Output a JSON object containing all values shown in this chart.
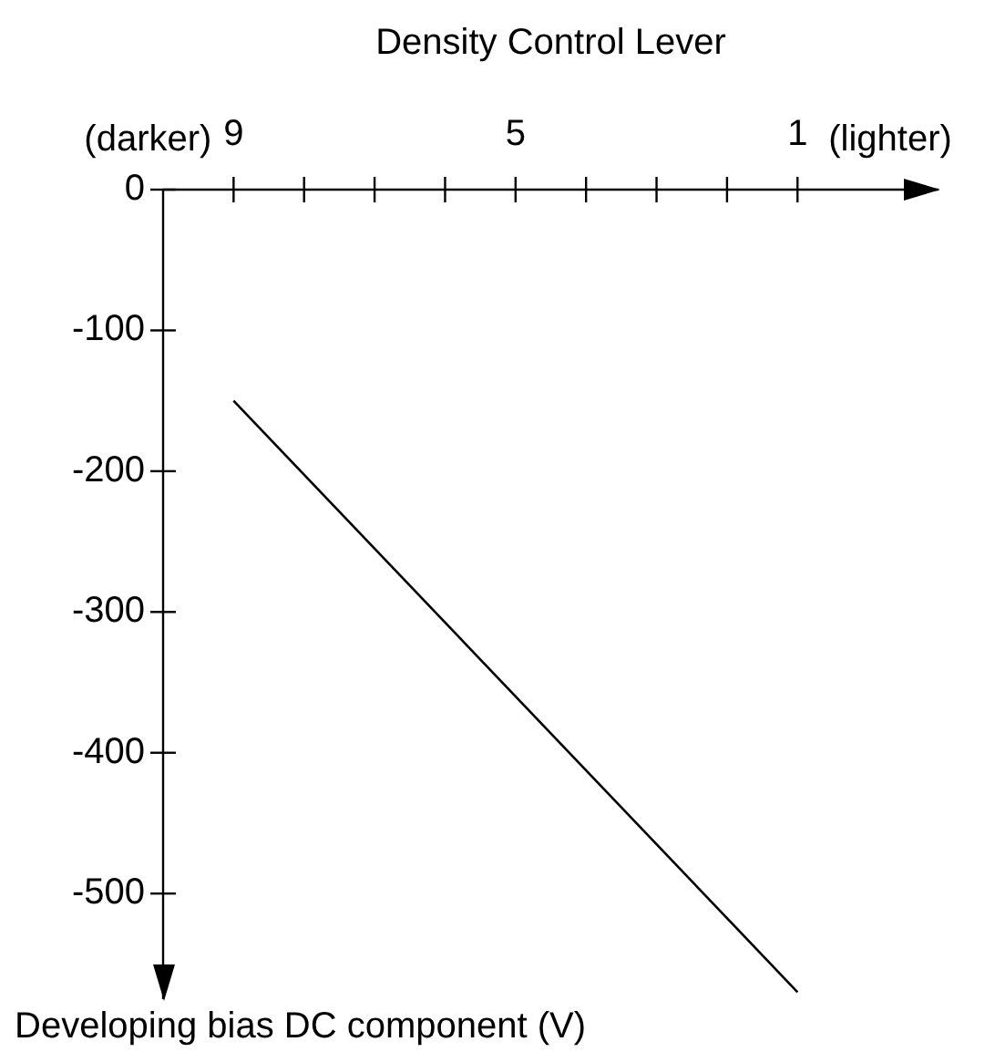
{
  "chart_data": {
    "type": "line",
    "xlabel": "Density Control Lever",
    "ylabel": "Developing bias DC component (V)",
    "annotations": [
      "(darker)",
      "(lighter)"
    ],
    "x": [
      9,
      1
    ],
    "series": [
      {
        "color": "#000000",
        "values": [
          -150,
          -570
        ]
      }
    ],
    "xlim": [
      10,
      -1
    ],
    "ylim": [
      -575,
      0
    ],
    "xticks": [
      9,
      {
        "value": 8,
        "label": null
      },
      {
        "value": 7,
        "label": null
      },
      {
        "value": 6,
        "label": null
      },
      5,
      {
        "value": 4,
        "label": null
      },
      {
        "value": 3,
        "label": null
      },
      {
        "value": 2,
        "label": null
      },
      1
    ],
    "yticks": [
      0,
      -100,
      -200,
      -300,
      -400,
      -500
    ],
    "grid": false,
    "legend": false,
    "marker": "none",
    "line_style": "solid"
  }
}
